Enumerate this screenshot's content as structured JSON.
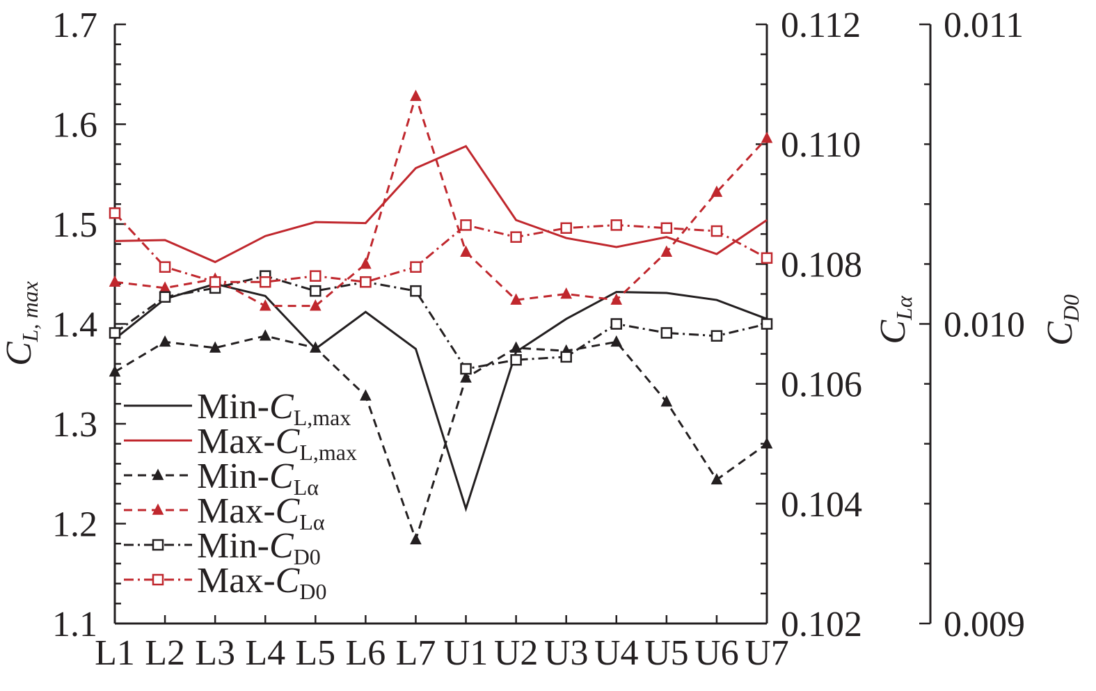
{
  "chart_data": {
    "type": "line",
    "categories": [
      "L1",
      "L2",
      "L3",
      "L4",
      "L5",
      "L6",
      "L7",
      "U1",
      "U2",
      "U3",
      "U4",
      "U5",
      "U6",
      "U7"
    ],
    "axes": {
      "left": {
        "label_main": "C",
        "label_sub": "L, max",
        "ylim": [
          1.1,
          1.7
        ],
        "ticks": [
          "1.1",
          "1.2",
          "1.3",
          "1.4",
          "1.5",
          "1.6",
          "1.7"
        ]
      },
      "right1": {
        "label_main": "C",
        "label_sub": "Lα",
        "ylim": [
          0.102,
          0.112
        ],
        "ticks": [
          "0.102",
          "0.104",
          "0.106",
          "0.108",
          "0.110",
          "0.112"
        ]
      },
      "right2": {
        "label_main": "C",
        "label_sub": "D0",
        "ylim": [
          0.009,
          0.011
        ],
        "ticks": [
          "0.009",
          "0.010",
          "0.011"
        ]
      }
    },
    "series": [
      {
        "name_main": "Min-",
        "name_sym": "C",
        "name_sub": "L,max",
        "axis": "left",
        "color": "#231f20",
        "dash": "solid",
        "marker": "none",
        "values": [
          1.385,
          1.425,
          1.44,
          1.428,
          1.375,
          1.412,
          1.375,
          1.215,
          1.372,
          1.405,
          1.432,
          1.431,
          1.424,
          1.405
        ]
      },
      {
        "name_main": "Max-",
        "name_sym": "C",
        "name_sub": "L,max",
        "axis": "left",
        "color": "#c0272d",
        "dash": "solid",
        "marker": "none",
        "values": [
          1.483,
          1.484,
          1.462,
          1.488,
          1.502,
          1.501,
          1.556,
          1.578,
          1.504,
          1.486,
          1.477,
          1.487,
          1.47,
          1.504
        ]
      },
      {
        "name_main": "Min-",
        "name_sym": "C",
        "name_sub": "Lα",
        "axis": "right1",
        "color": "#231f20",
        "dash": "dashed",
        "marker": "triangle",
        "values": [
          0.1062,
          0.1067,
          0.1066,
          0.1068,
          0.1066,
          0.1058,
          0.1034,
          0.1061,
          0.1066,
          0.10655,
          0.1067,
          0.1057,
          0.1044,
          0.105
        ]
      },
      {
        "name_main": "Max-",
        "name_sym": "C",
        "name_sub": "Lα",
        "axis": "right1",
        "color": "#c0272d",
        "dash": "dashed",
        "marker": "triangle",
        "values": [
          0.1077,
          0.1076,
          0.10775,
          0.1073,
          0.1073,
          0.108,
          0.1108,
          0.1082,
          0.1074,
          0.1075,
          0.1074,
          0.1082,
          0.1092,
          0.1101
        ]
      },
      {
        "name_main": "Min-",
        "name_sym": "C",
        "name_sub": "D0",
        "axis": "right2",
        "color": "#231f20",
        "dash": "dashdot",
        "marker": "square",
        "values": [
          0.00997,
          0.01009,
          0.01012,
          0.01016,
          0.01011,
          0.01014,
          0.01011,
          0.00985,
          0.00988,
          0.00989,
          0.01,
          0.00997,
          0.00996,
          0.01
        ]
      },
      {
        "name_main": "Max-",
        "name_sym": "C",
        "name_sub": "D0",
        "axis": "right2",
        "color": "#c0272d",
        "dash": "dashdot",
        "marker": "square",
        "values": [
          0.01037,
          0.01019,
          0.01014,
          0.01014,
          0.01016,
          0.01014,
          0.01019,
          0.01033,
          0.01029,
          0.01032,
          0.01033,
          0.01032,
          0.01031,
          0.01022
        ]
      }
    ],
    "grid": false,
    "legend_position": "lower-left"
  }
}
